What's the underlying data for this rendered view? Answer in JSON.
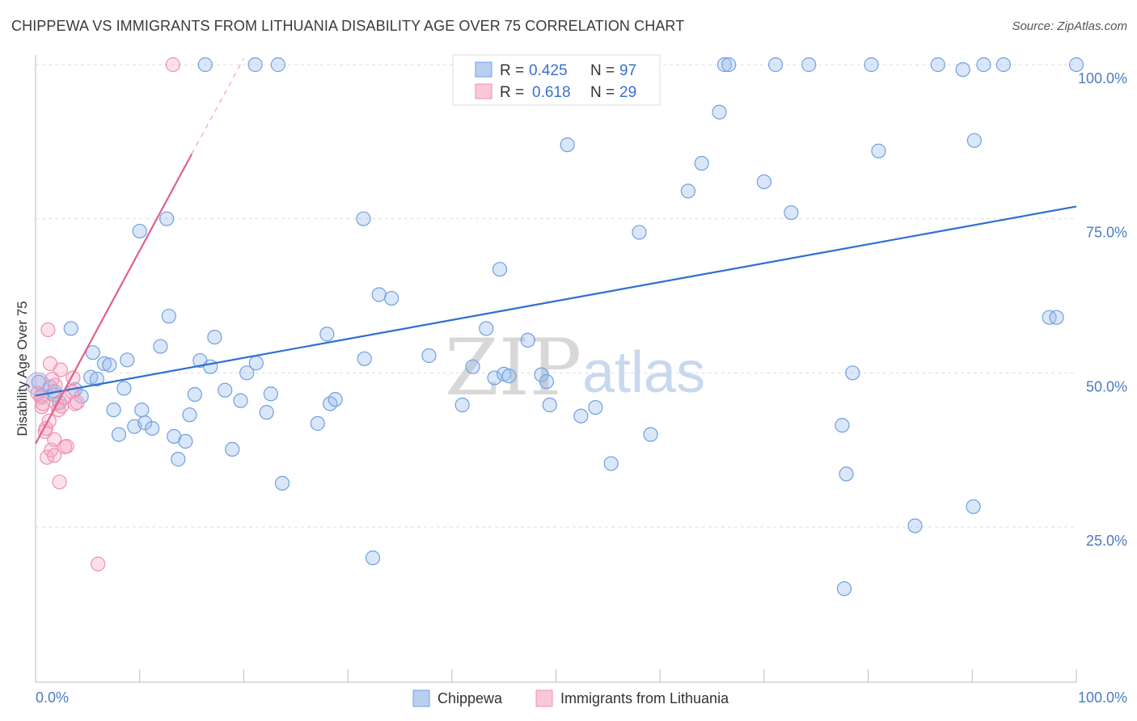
{
  "title": "CHIPPEWA VS IMMIGRANTS FROM LITHUANIA DISABILITY AGE OVER 75 CORRELATION CHART",
  "source": "Source: ZipAtlas.com",
  "colors": {
    "blue": "#6fa0e0",
    "blue_line": "#2f6fcf",
    "pink": "#f090b0",
    "pink_line": "#e0608a",
    "axis_text": "#4a7cc4"
  },
  "legend_top": {
    "rows": [
      {
        "r_label": "R =",
        "r_value": "0.425",
        "n_label": "N =",
        "n_value": "97"
      },
      {
        "r_label": "R =",
        "r_value": "0.618",
        "n_label": "N =",
        "n_value": "29"
      }
    ]
  },
  "watermark": {
    "zip": "ZIP",
    "atlas": "atlas"
  },
  "chart_data": {
    "type": "scatter",
    "title": "CHIPPEWA VS IMMIGRANTS FROM LITHUANIA DISABILITY AGE OVER 75 CORRELATION CHART",
    "xlabel": "",
    "ylabel": "Disability Age Over 75",
    "xlim": [
      0,
      100
    ],
    "ylim": [
      5,
      102
    ],
    "x_tick_labels": [
      "0.0%",
      "100.0%"
    ],
    "y_tick_labels": [
      "25.0%",
      "50.0%",
      "75.0%",
      "100.0%"
    ],
    "y_ticks": [
      25,
      50,
      75,
      100
    ],
    "grid": true,
    "legend_position": "top-center",
    "series": [
      {
        "name": "Chippewa",
        "r": 0.425,
        "n": 97,
        "trend": {
          "x0": 0,
          "y0": 46.3,
          "x1": 100,
          "y1": 77.0
        },
        "points": [
          [
            0.3,
            48.5
          ],
          [
            0.6,
            46.3
          ],
          [
            1.4,
            47.7
          ],
          [
            1.8,
            46.5
          ],
          [
            2.3,
            45.2
          ],
          [
            3.4,
            57.2
          ],
          [
            3.8,
            47.3
          ],
          [
            4.4,
            46.2
          ],
          [
            5.3,
            49.3
          ],
          [
            5.5,
            53.3
          ],
          [
            5.9,
            49.0
          ],
          [
            6.6,
            51.5
          ],
          [
            7.1,
            51.3
          ],
          [
            7.5,
            44.0
          ],
          [
            8.0,
            40.0
          ],
          [
            8.5,
            47.5
          ],
          [
            8.8,
            52.1
          ],
          [
            9.5,
            41.3
          ],
          [
            10.2,
            44.0
          ],
          [
            10.5,
            41.9
          ],
          [
            10.0,
            73.0
          ],
          [
            11.2,
            41.0
          ],
          [
            12.0,
            54.3
          ],
          [
            12.6,
            75.0
          ],
          [
            12.8,
            59.2
          ],
          [
            13.3,
            39.7
          ],
          [
            13.7,
            36.0
          ],
          [
            14.4,
            38.9
          ],
          [
            14.8,
            43.2
          ],
          [
            15.3,
            46.5
          ],
          [
            15.8,
            52.0
          ],
          [
            16.8,
            51.0
          ],
          [
            17.2,
            55.8
          ],
          [
            18.2,
            47.2
          ],
          [
            18.9,
            37.6
          ],
          [
            19.7,
            45.5
          ],
          [
            20.3,
            50.0
          ],
          [
            21.2,
            51.6
          ],
          [
            22.2,
            43.6
          ],
          [
            22.6,
            46.6
          ],
          [
            23.7,
            32.1
          ],
          [
            16.3,
            100
          ],
          [
            21.1,
            100
          ],
          [
            23.3,
            100
          ],
          [
            27.1,
            41.8
          ],
          [
            28.0,
            56.3
          ],
          [
            28.3,
            45.0
          ],
          [
            28.8,
            45.7
          ],
          [
            31.5,
            75.0
          ],
          [
            31.6,
            52.3
          ],
          [
            32.4,
            20.0
          ],
          [
            33.0,
            62.7
          ],
          [
            34.2,
            62.1
          ],
          [
            37.8,
            52.8
          ],
          [
            41.0,
            44.8
          ],
          [
            42.0,
            51.0
          ],
          [
            43.3,
            57.2
          ],
          [
            44.1,
            49.2
          ],
          [
            45.0,
            49.8
          ],
          [
            44.6,
            66.8
          ],
          [
            45.5,
            49.5
          ],
          [
            47.3,
            55.3
          ],
          [
            48.6,
            49.7
          ],
          [
            49.1,
            48.6
          ],
          [
            49.4,
            44.8
          ],
          [
            51.1,
            87.0
          ],
          [
            52.4,
            43.0
          ],
          [
            53.8,
            44.4
          ],
          [
            55.3,
            35.3
          ],
          [
            58.0,
            72.8
          ],
          [
            59.1,
            40.0
          ],
          [
            62.7,
            79.5
          ],
          [
            64.0,
            84.0
          ],
          [
            65.7,
            92.3
          ],
          [
            66.2,
            100
          ],
          [
            66.6,
            100
          ],
          [
            70.0,
            81.0
          ],
          [
            71.1,
            100
          ],
          [
            72.6,
            76.0
          ],
          [
            74.3,
            100
          ],
          [
            77.5,
            41.5
          ],
          [
            77.9,
            33.6
          ],
          [
            78.5,
            50.0
          ],
          [
            80.3,
            100
          ],
          [
            81.0,
            86.0
          ],
          [
            84.5,
            25.2
          ],
          [
            86.7,
            100
          ],
          [
            89.1,
            99.2
          ],
          [
            90.1,
            28.3
          ],
          [
            90.2,
            87.7
          ],
          [
            91.1,
            100
          ],
          [
            93.0,
            100
          ],
          [
            97.4,
            59.0
          ],
          [
            98.1,
            59.0
          ],
          [
            77.7,
            15.0
          ],
          [
            100,
            100
          ],
          [
            1.8,
            47.0
          ]
        ]
      },
      {
        "name": "Immigrants from Lithuania",
        "r": 0.618,
        "n": 29,
        "trend": {
          "x0": 0,
          "y0": 38.5,
          "x1": 15,
          "y1": 85.5,
          "dash_x1": 20,
          "dash_y1": 101
        },
        "points": [
          [
            0.2,
            46.7
          ],
          [
            0.5,
            46.0
          ],
          [
            0.6,
            44.5
          ],
          [
            0.7,
            45.0
          ],
          [
            0.9,
            40.5
          ],
          [
            1.0,
            41.0
          ],
          [
            1.1,
            36.3
          ],
          [
            1.2,
            57.0
          ],
          [
            1.3,
            42.2
          ],
          [
            1.4,
            51.5
          ],
          [
            1.5,
            37.5
          ],
          [
            1.6,
            49.0
          ],
          [
            1.8,
            39.2
          ],
          [
            1.8,
            36.6
          ],
          [
            1.9,
            48.0
          ],
          [
            2.0,
            45.0
          ],
          [
            2.2,
            44.0
          ],
          [
            2.3,
            32.3
          ],
          [
            2.4,
            50.5
          ],
          [
            2.5,
            44.6
          ],
          [
            2.8,
            46.0
          ],
          [
            2.8,
            38.0
          ],
          [
            3.0,
            38.1
          ],
          [
            3.5,
            46.9
          ],
          [
            3.6,
            49.2
          ],
          [
            3.8,
            45.0
          ],
          [
            4.0,
            45.2
          ],
          [
            6.0,
            19.0
          ],
          [
            13.2,
            100
          ]
        ]
      }
    ]
  },
  "bottom_legend": [
    {
      "label": "Chippewa"
    },
    {
      "label": "Immigrants from Lithuania"
    }
  ]
}
